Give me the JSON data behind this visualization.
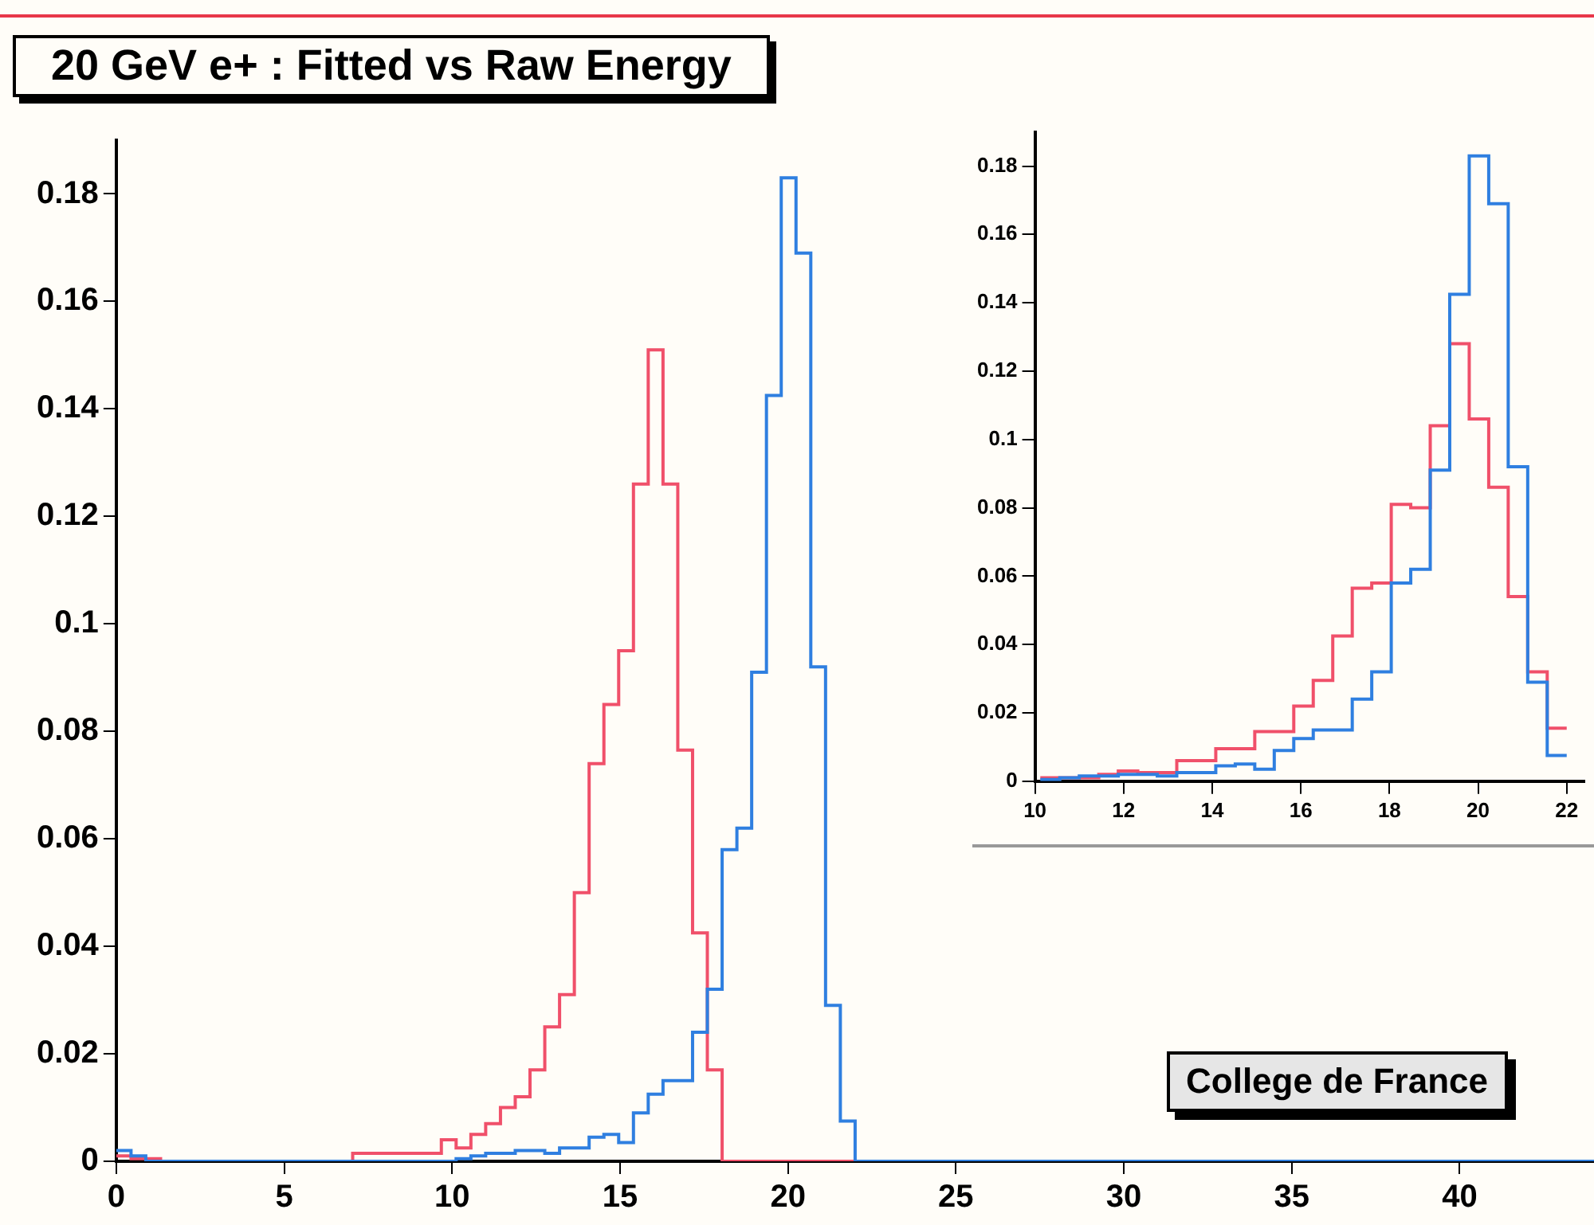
{
  "chart_data": [
    {
      "type": "histogram",
      "title": "20 GeV e+ : Fitted vs Raw Energy",
      "annotations": [
        "College de France"
      ],
      "bins": [
        0,
        0.44,
        0.88,
        1.32,
        1.76,
        2.2,
        2.64,
        3.08,
        3.52,
        3.96,
        4.4,
        4.84,
        5.28,
        5.72,
        6.16,
        6.6,
        7.04,
        7.48,
        7.92,
        8.36,
        8.8,
        9.24,
        9.68,
        10.12,
        10.56,
        11,
        11.44,
        11.88,
        12.32,
        12.76,
        13.2,
        13.64,
        14.08,
        14.52,
        14.96,
        15.4,
        15.84,
        16.28,
        16.72,
        17.16,
        17.6,
        18.04,
        18.48,
        18.92,
        19.36,
        19.8,
        20.24,
        20.68,
        21.12,
        21.56,
        22,
        22.44,
        22.88,
        23.32,
        23.76,
        24.2,
        24.64,
        25.08,
        25.52,
        25.96,
        26.4,
        26.84,
        27.28,
        27.72,
        28.16,
        28.6,
        29.04,
        29.48,
        29.92,
        30.36,
        30.8,
        31.24,
        31.68,
        32.12,
        32.56,
        33,
        33.44,
        33.88,
        34.32,
        34.76,
        35.2,
        35.64,
        36.08,
        36.52,
        36.96,
        37.4,
        37.84,
        38.28,
        38.72,
        39.16,
        39.6,
        40.04,
        40.48,
        40.92,
        41.36,
        41.8,
        42.24,
        42.68,
        43.12,
        43.56,
        44
      ],
      "series": [
        {
          "color": "#2f7fe0",
          "values": [
            0.002,
            0.001,
            0,
            0,
            0,
            0,
            0,
            0,
            0,
            0,
            0,
            0,
            0,
            0,
            0,
            0,
            0,
            0,
            0,
            0,
            0,
            0,
            0,
            0.0005,
            0.001,
            0.0015,
            0.0015,
            0.002,
            0.002,
            0.0015,
            0.0025,
            0.0025,
            0.0045,
            0.005,
            0.0035,
            0.009,
            0.0125,
            0.015,
            0.015,
            0.024,
            0.032,
            0.058,
            0.062,
            0.091,
            0.1425,
            0.183,
            0.169,
            0.092,
            0.029,
            0.0075,
            0,
            0,
            0,
            0,
            0,
            0,
            0,
            0,
            0,
            0,
            0,
            0,
            0,
            0,
            0,
            0,
            0,
            0,
            0,
            0,
            0,
            0,
            0,
            0,
            0,
            0,
            0,
            0,
            0,
            0,
            0,
            0,
            0,
            0,
            0,
            0,
            0,
            0,
            0,
            0,
            0,
            0,
            0,
            0,
            0,
            0,
            0,
            0,
            0,
            0
          ]
        },
        {
          "color": "#f0506a",
          "values": [
            0.001,
            0.0005,
            0.0005,
            0,
            0,
            0,
            0,
            0,
            0,
            0,
            0,
            0,
            0,
            0,
            0,
            0,
            0.0015,
            0.0015,
            0.0015,
            0.0015,
            0.0015,
            0.0015,
            0.004,
            0.0025,
            0.005,
            0.007,
            0.01,
            0.012,
            0.017,
            0.025,
            0.031,
            0.05,
            0.074,
            0.085,
            0.095,
            0.126,
            0.151,
            0.126,
            0.0765,
            0.0425,
            0.017,
            0,
            0,
            0,
            0,
            0,
            0,
            0,
            0,
            0,
            0,
            0,
            0,
            0,
            0,
            0,
            0,
            0,
            0,
            0,
            0,
            0,
            0,
            0,
            0,
            0,
            0,
            0,
            0,
            0,
            0,
            0,
            0,
            0,
            0,
            0,
            0,
            0,
            0,
            0,
            0,
            0,
            0,
            0,
            0,
            0,
            0,
            0,
            0,
            0,
            0,
            0,
            0,
            0,
            0,
            0,
            0,
            0,
            0,
            0
          ]
        }
      ],
      "xlim": [
        0,
        44
      ],
      "xticks": [
        0,
        5,
        10,
        15,
        20,
        25,
        30,
        35,
        40
      ],
      "ylim": [
        0,
        0.19
      ],
      "yticks": [
        0,
        0.02,
        0.04,
        0.06,
        0.08,
        0.1,
        0.12,
        0.14,
        0.16,
        0.18
      ]
    },
    {
      "type": "histogram",
      "bins": [
        10.12,
        10.56,
        11,
        11.44,
        11.88,
        12.32,
        12.76,
        13.2,
        13.64,
        14.08,
        14.52,
        14.96,
        15.4,
        15.84,
        16.28,
        16.72,
        17.16,
        17.6,
        18.04,
        18.48,
        18.92,
        19.36,
        19.8,
        20.24,
        20.68,
        21.12,
        21.56,
        22
      ],
      "series": [
        {
          "color": "#2f7fe0",
          "values": [
            0.0005,
            0.001,
            0.0015,
            0.0015,
            0.002,
            0.002,
            0.0015,
            0.0025,
            0.0025,
            0.0045,
            0.005,
            0.0035,
            0.009,
            0.0125,
            0.015,
            0.015,
            0.024,
            0.032,
            0.058,
            0.062,
            0.091,
            0.1425,
            0.183,
            0.169,
            0.092,
            0.029,
            0.0075
          ]
        },
        {
          "color": "#f0506a",
          "values": [
            0.001,
            0.001,
            0.001,
            0.002,
            0.003,
            0.0025,
            0.0025,
            0.006,
            0.006,
            0.0095,
            0.0095,
            0.0145,
            0.0145,
            0.022,
            0.0295,
            0.0425,
            0.0565,
            0.058,
            0.081,
            0.08,
            0.104,
            0.128,
            0.106,
            0.086,
            0.054,
            0.032,
            0.0155
          ]
        }
      ],
      "xlim": [
        10,
        22.4
      ],
      "xticks": [
        10,
        12,
        14,
        16,
        18,
        20,
        22
      ],
      "ylim": [
        0,
        0.19
      ],
      "yticks": [
        0,
        0.02,
        0.04,
        0.06,
        0.08,
        0.1,
        0.12,
        0.14,
        0.16,
        0.18
      ]
    }
  ]
}
